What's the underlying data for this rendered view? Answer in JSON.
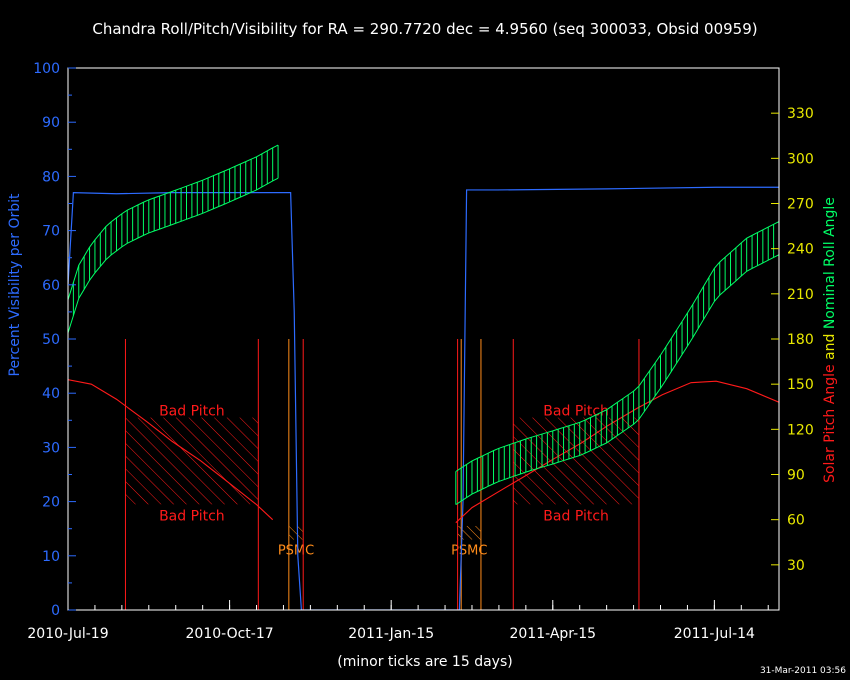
{
  "colors": {
    "frame": "#ffffff",
    "visibility": "#2d6bff",
    "roll": "#00ff66",
    "pitch": "#ff1a1a",
    "psmc": "#ff8c1a",
    "right_axis_ticks": "#e8e800"
  },
  "chart_data": {
    "type": "line",
    "title": "Chandra Roll/Pitch/Visibility for RA = 290.7720 dec = 4.9560 (seq 300033, Obsid 00959)",
    "ylabel_left": "Percent Visibility per Orbit",
    "ylabel_right_parts": [
      {
        "text": "Solar Pitch Angle",
        "color": "#ff1a1a"
      },
      {
        "text": "and",
        "color": "#e8e800"
      },
      {
        "text": "Nominal Roll Angle",
        "color": "#00ff66"
      }
    ],
    "xlabel": "(minor ticks are 15 days)",
    "timestamp": "31-Mar-2011 03:56",
    "x_range": [
      "2010-07-19",
      "2011-08-19"
    ],
    "x_tick_labels": [
      "2010-Jul-19",
      "2010-Oct-17",
      "2011-Jan-15",
      "2011-Apr-15",
      "2011-Jul-14"
    ],
    "x_ticks": [
      "2010-07-19",
      "2010-10-17",
      "2011-01-15",
      "2011-04-15",
      "2011-07-14"
    ],
    "y_left_range": [
      0,
      100
    ],
    "y_left_ticks": [
      0,
      10,
      20,
      30,
      40,
      50,
      60,
      70,
      80,
      90,
      100
    ],
    "y_right_range": [
      0,
      360
    ],
    "y_right_ticks": [
      30,
      60,
      90,
      120,
      150,
      180,
      210,
      240,
      270,
      300,
      330
    ],
    "series": [
      {
        "name": "Percent Visibility per Orbit",
        "axis": "left",
        "x": [
          "2010-07-19",
          "2010-07-22",
          "2010-08-15",
          "2010-09-15",
          "2010-10-15",
          "2010-11-15",
          "2010-11-20",
          "2010-11-22",
          "2010-11-24",
          "2010-11-26",
          "2011-02-22",
          "2011-02-24",
          "2011-02-26",
          "2011-03-15",
          "2011-05-15",
          "2011-07-15",
          "2011-08-19"
        ],
        "y": [
          60,
          77,
          76.8,
          77,
          77,
          77,
          77,
          55,
          10,
          0,
          0,
          20,
          77.5,
          77.5,
          77.7,
          78,
          78
        ]
      },
      {
        "name": "Solar Pitch Angle",
        "axis": "right",
        "x": [
          "2010-07-19",
          "2010-08-01",
          "2010-08-15",
          "2010-09-01",
          "2010-09-15",
          "2010-10-01",
          "2010-10-15",
          "2010-11-01",
          "2010-11-10",
          "2011-02-20",
          "2011-03-01",
          "2011-03-15",
          "2011-04-01",
          "2011-04-15",
          "2011-05-01",
          "2011-05-15",
          "2011-06-01",
          "2011-06-15",
          "2011-07-01",
          "2011-07-15",
          "2011-08-01",
          "2011-08-19"
        ],
        "y": [
          153,
          150,
          140,
          125,
          112,
          99,
          86,
          70,
          60,
          58,
          68,
          78,
          90,
          100,
          111,
          122,
          134,
          143,
          151,
          152,
          147,
          138
        ]
      },
      {
        "name": "Nominal Roll Angle",
        "axis": "right",
        "error_half_width": 11,
        "error_step_days": 3,
        "segments": [
          {
            "x": [
              "2010-07-19",
              "2010-07-25",
              "2010-08-01",
              "2010-08-10",
              "2010-08-20",
              "2010-09-01",
              "2010-09-15",
              "2010-10-01",
              "2010-10-15",
              "2010-11-01",
              "2010-11-10",
              "2010-11-15"
            ],
            "y": [
              195,
              218,
              232,
              245,
              254,
              261,
              267,
              274,
              281,
              290,
              296,
              299
            ]
          },
          {
            "x": [
              "2011-02-20",
              "2011-03-01",
              "2011-03-15",
              "2011-04-01",
              "2011-04-15",
              "2011-05-01",
              "2011-05-15",
              "2011-06-01",
              "2011-06-15",
              "2011-07-01",
              "2011-07-15",
              "2011-08-01",
              "2011-08-19"
            ],
            "y": [
              81,
              88,
              96,
              103,
              108,
              114,
              122,
              136,
              160,
              190,
              218,
              236,
              247
            ]
          }
        ]
      }
    ],
    "vertical_lines": [
      {
        "x": "2010-08-20",
        "color": "#ff1a1a",
        "ymax_right": 180
      },
      {
        "x": "2010-11-02",
        "color": "#ff1a1a",
        "ymax_right": 180
      },
      {
        "x": "2010-11-19",
        "color": "#ff8c1a",
        "ymax_right": 180
      },
      {
        "x": "2010-11-27",
        "color": "#ff1a1a",
        "ymax_right": 180
      },
      {
        "x": "2011-02-21",
        "color": "#ff1a1a",
        "ymax_right": 180
      },
      {
        "x": "2011-02-23",
        "color": "#ff8c1a",
        "ymax_right": 180
      },
      {
        "x": "2011-03-06",
        "color": "#ff8c1a",
        "ymax_right": 180
      },
      {
        "x": "2011-03-24",
        "color": "#ff1a1a",
        "ymax_right": 180
      },
      {
        "x": "2011-06-02",
        "color": "#ff1a1a",
        "ymax_right": 180
      }
    ],
    "annotations": [
      {
        "kind": "bad_pitch",
        "label_top": "Bad Pitch",
        "label_bottom": "Bad Pitch",
        "x_range": [
          "2010-08-20",
          "2010-11-02"
        ],
        "y_range": [
          19.5,
          35.5
        ]
      },
      {
        "kind": "bad_pitch",
        "label_top": "Bad Pitch",
        "label_bottom": "Bad Pitch",
        "x_range": [
          "2011-03-24",
          "2011-06-02"
        ],
        "y_range": [
          19.5,
          35.5
        ]
      },
      {
        "kind": "psmc",
        "label": "PSMC",
        "x_range": [
          "2010-11-19",
          "2010-11-27"
        ],
        "y_range": [
          13,
          15.5
        ]
      },
      {
        "kind": "psmc",
        "label": "PSMC",
        "x_range": [
          "2011-02-21",
          "2011-03-06"
        ],
        "y_range": [
          13,
          15.5
        ]
      }
    ]
  }
}
